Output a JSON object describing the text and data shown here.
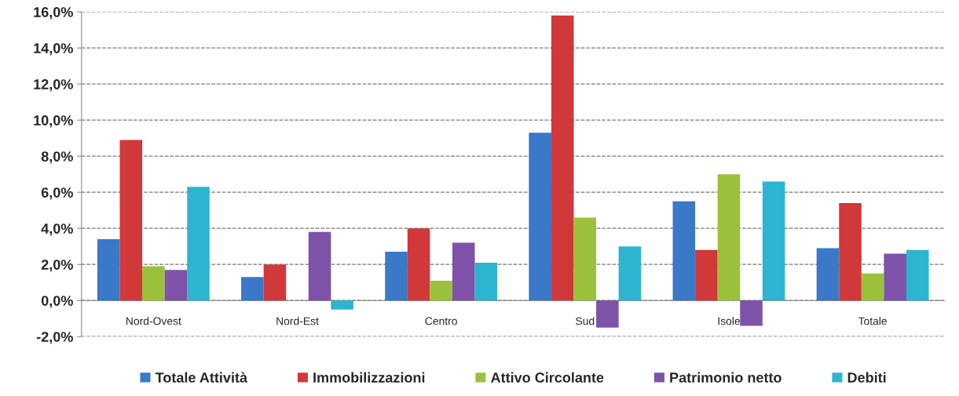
{
  "chart_data": {
    "type": "bar",
    "categories": [
      "Nord-Ovest",
      "Nord-Est",
      "Centro",
      "Sud",
      "Isole",
      "Totale"
    ],
    "series": [
      {
        "name": "Totale Attività",
        "color": "#3a78c8",
        "values": [
          3.4,
          1.3,
          2.7,
          9.3,
          5.5,
          2.9
        ]
      },
      {
        "name": "Immobilizzazioni",
        "color": "#d0383a",
        "values": [
          8.9,
          2.0,
          4.0,
          15.8,
          2.8,
          5.4
        ]
      },
      {
        "name": "Attivo Circolante",
        "color": "#9bc13c",
        "values": [
          1.9,
          0.0,
          1.1,
          4.6,
          7.0,
          1.5
        ]
      },
      {
        "name": "Patrimonio netto",
        "color": "#7d52a8",
        "values": [
          1.7,
          3.8,
          3.2,
          -1.5,
          -1.4,
          2.6
        ]
      },
      {
        "name": "Debiti",
        "color": "#2db4d0",
        "values": [
          6.3,
          -0.5,
          2.1,
          3.0,
          6.6,
          2.8
        ]
      }
    ],
    "ylim": [
      -2,
      16
    ],
    "yticks": [
      {
        "value": -2,
        "label": "-2,0%"
      },
      {
        "value": 0,
        "label": "0,0%"
      },
      {
        "value": 2,
        "label": "2,0%"
      },
      {
        "value": 4,
        "label": "4,0%"
      },
      {
        "value": 6,
        "label": "6,0%"
      },
      {
        "value": 8,
        "label": "8,0%"
      },
      {
        "value": 10,
        "label": "10,0%"
      },
      {
        "value": 12,
        "label": "12,0%"
      },
      {
        "value": 14,
        "label": "14,0%"
      },
      {
        "value": 16,
        "label": "16,0%"
      }
    ],
    "grid": "y",
    "legend": "bottom"
  }
}
